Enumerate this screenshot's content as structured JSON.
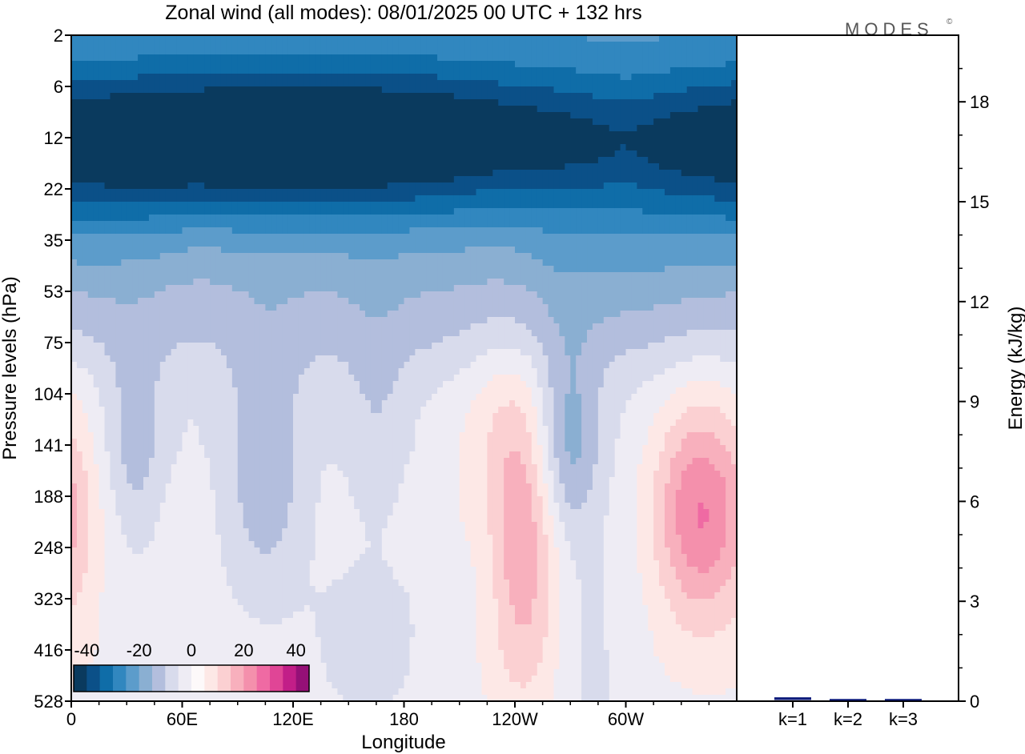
{
  "title": "Zonal wind (all modes):  08/01/2025  00 UTC  + 132 hrs",
  "logo": "MODES",
  "logo_mark": "©",
  "colors": {
    "negative_scale": [
      "#0a3a5e",
      "#0b5088",
      "#0f6da8",
      "#3187bf",
      "#5c9ccb",
      "#8aafd2",
      "#b3bedd",
      "#d8dbec",
      "#eeecf4"
    ],
    "positive_scale": [
      "#fde8e6",
      "#fbd0d2",
      "#f8b0bd",
      "#f490ac",
      "#ef6aa3",
      "#e04596",
      "#c21e88",
      "#951077",
      "#6a0c6b",
      "#3e0a5e"
    ],
    "neutral": "#fdf9fa",
    "bar": "#0c1a7a"
  },
  "chart_data": [
    {
      "type": "heatmap",
      "title": "Zonal wind (all modes):  08/01/2025  00 UTC  + 132 hrs",
      "xlabel": "Longitude",
      "ylabel": "Pressure levels (hPa)",
      "x_ticks": [
        "0",
        "60E",
        "120E",
        "180",
        "120W",
        "60W"
      ],
      "y_ticks": [
        "2",
        "6",
        "12",
        "22",
        "35",
        "53",
        "75",
        "104",
        "141",
        "188",
        "248",
        "323",
        "416",
        "528"
      ],
      "colorbar": {
        "ticks": [
          "-40",
          "-20",
          "0",
          "20",
          "40"
        ],
        "range": [
          -45,
          45
        ]
      },
      "grid": false,
      "features": [
        {
          "lon": 120,
          "level": 2.0,
          "value": -32,
          "sx": 180,
          "sy": 1.1
        },
        {
          "lon": 50,
          "level": 4.0,
          "value": -14,
          "sx": 110,
          "sy": 1.5
        },
        {
          "lon": 250,
          "level": 4.0,
          "value": -14,
          "sx": 130,
          "sy": 1.5
        },
        {
          "lon": 180,
          "level": 5.0,
          "value": -8,
          "sx": 200,
          "sy": 1.4
        },
        {
          "lon": 80,
          "level": 4.5,
          "value": 6,
          "sx": 120,
          "sy": 1.1
        },
        {
          "lon": 200,
          "level": 4.0,
          "value": 3,
          "sx": 120,
          "sy": 1.2
        },
        {
          "lon": 35,
          "level": 8.0,
          "value": -9,
          "sx": 12,
          "sy": 1.3
        },
        {
          "lon": 105,
          "level": 8.5,
          "value": -11,
          "sx": 15,
          "sy": 1.7
        },
        {
          "lon": 165,
          "level": 7.5,
          "value": -5,
          "sx": 12,
          "sy": 1.5
        },
        {
          "lon": 268,
          "level": 8.0,
          "value": -17,
          "sx": 13,
          "sy": 1.4
        },
        {
          "lon": 160,
          "level": 12.0,
          "value": -6,
          "sx": 20,
          "sy": 1.0
        },
        {
          "lon": 240,
          "level": 8.0,
          "value": 10,
          "sx": 22,
          "sy": 1.6
        },
        {
          "lon": 245,
          "level": 10.5,
          "value": 14,
          "sx": 14,
          "sy": 1.9
        },
        {
          "lon": 340,
          "level": 9.3,
          "value": 23,
          "sx": 18,
          "sy": 1.6
        },
        {
          "lon": 5,
          "level": 9.5,
          "value": 3,
          "sx": 12,
          "sy": 2.0
        },
        {
          "lon": 225,
          "level": 9.5,
          "value": -2,
          "sx": 8,
          "sy": 1.2
        },
        {
          "lon": 280,
          "level": 12.5,
          "value": -4,
          "sx": 15,
          "sy": 1.5
        },
        {
          "lon": 50,
          "level": 9.0,
          "value": 1,
          "sx": 8,
          "sy": 1.2
        }
      ],
      "background_profile": [
        {
          "level": 0.0,
          "value": -20
        },
        {
          "level": 1.0,
          "value": -16
        },
        {
          "level": 2.0,
          "value": -12
        },
        {
          "level": 3.0,
          "value": -4
        },
        {
          "level": 4.0,
          "value": 2
        },
        {
          "level": 5.0,
          "value": 3
        },
        {
          "level": 6.0,
          "value": 1
        },
        {
          "level": 7.0,
          "value": -1
        },
        {
          "level": 8.0,
          "value": -3
        },
        {
          "level": 9.0,
          "value": -3
        },
        {
          "level": 10.0,
          "value": -3
        },
        {
          "level": 11.0,
          "value": -3
        },
        {
          "level": 12.0,
          "value": -2
        },
        {
          "level": 13.0,
          "value": -2
        }
      ]
    },
    {
      "type": "bar",
      "ylabel": "Energy (kJ/kg)",
      "categories": [
        "k=1",
        "k=2",
        "k=3"
      ],
      "values": [
        0.08,
        0.03,
        0.03
      ],
      "ylim": [
        0,
        20
      ],
      "y_ticks": [
        "0",
        "3",
        "6",
        "9",
        "12",
        "15",
        "18"
      ]
    }
  ]
}
